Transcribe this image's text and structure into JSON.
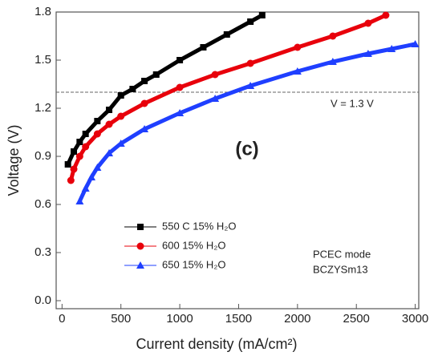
{
  "chart_data": {
    "type": "line",
    "x_label": "Current density (mA/cm²)",
    "y_label": "Voltage (V)",
    "xlim": [
      -50,
      3030
    ],
    "ylim": [
      -0.05,
      1.8
    ],
    "xticks": [
      0,
      500,
      1000,
      1500,
      2000,
      2500,
      3000
    ],
    "yticks": [
      {
        "value": 0,
        "label": "0.0"
      },
      0.3,
      0.6,
      0.9,
      1.2,
      1.5,
      1.8
    ],
    "hline": 1.3,
    "hline_label": "V = 1.3 V",
    "panel_label": "(c)",
    "note": [
      "PCEC mode",
      "BCZYSm13"
    ],
    "legend": "lower left",
    "series": [
      {
        "name": "550 C 15% H₂O",
        "color": "#000000",
        "marker": "square",
        "x": [
          50,
          100,
          150,
          200,
          300,
          400,
          500,
          600,
          700,
          800,
          1000,
          1200,
          1400,
          1600,
          1700
        ],
        "values": [
          0.85,
          0.93,
          0.99,
          1.04,
          1.12,
          1.19,
          1.28,
          1.32,
          1.37,
          1.41,
          1.5,
          1.58,
          1.66,
          1.74,
          1.78
        ]
      },
      {
        "name": "600 15% H₂O",
        "color": "#e8000b",
        "marker": "circle",
        "x": [
          75,
          100,
          150,
          200,
          300,
          400,
          500,
          700,
          1000,
          1300,
          1600,
          2000,
          2300,
          2600,
          2750
        ],
        "values": [
          0.75,
          0.82,
          0.9,
          0.96,
          1.04,
          1.1,
          1.15,
          1.23,
          1.33,
          1.41,
          1.48,
          1.58,
          1.65,
          1.73,
          1.78
        ]
      },
      {
        "name": "650 15% H₂O",
        "color": "#1f3fff",
        "marker": "triangle",
        "x": [
          150,
          200,
          250,
          300,
          400,
          500,
          700,
          1000,
          1300,
          1600,
          2000,
          2300,
          2600,
          2800,
          3000
        ],
        "values": [
          0.62,
          0.7,
          0.77,
          0.83,
          0.92,
          0.98,
          1.07,
          1.17,
          1.26,
          1.34,
          1.43,
          1.49,
          1.54,
          1.57,
          1.6
        ]
      }
    ]
  }
}
